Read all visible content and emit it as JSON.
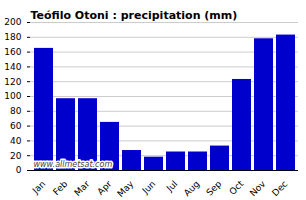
{
  "chart_data": {
    "type": "bar",
    "title": "Teófilo Otoni : precipitation (mm)",
    "categories": [
      "Jan",
      "Feb",
      "Mar",
      "Apr",
      "May",
      "Jun",
      "Jul",
      "Aug",
      "Sep",
      "Oct",
      "Nov",
      "Dec"
    ],
    "values": [
      165,
      97,
      97,
      65,
      27,
      18,
      25,
      25,
      33,
      123,
      178,
      183
    ],
    "color": "#0000CC",
    "ylim": [
      0,
      200
    ],
    "yticks": [
      0,
      20,
      40,
      60,
      80,
      100,
      120,
      140,
      160,
      180,
      200
    ],
    "grid": true,
    "annotations": [
      "www.allmetsat.com"
    ]
  }
}
